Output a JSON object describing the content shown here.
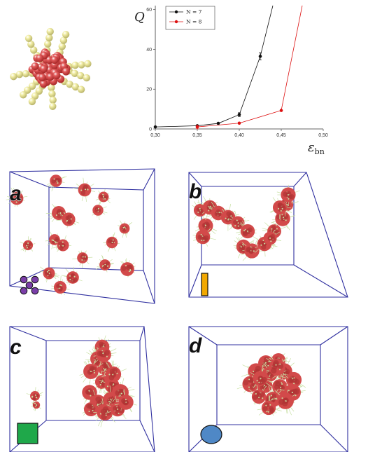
{
  "chart_data": {
    "type": "line",
    "xlabel": "εbn",
    "ylabel": "Q",
    "xlim": [
      0.3,
      0.5
    ],
    "ylim": [
      0,
      62
    ],
    "x_ticks": [
      "0,30",
      "0,35",
      "0,40",
      "0,45",
      "0,50"
    ],
    "y_ticks": [
      "0",
      "20",
      "40",
      "60"
    ],
    "grid": false,
    "legend_position": "top-left",
    "series": [
      {
        "name": "N = 7",
        "color": "#111111",
        "x": [
          0.3,
          0.35,
          0.375,
          0.4,
          0.425,
          0.44
        ],
        "y": [
          1.0,
          1.6,
          2.8,
          7.2,
          36.5,
          62
        ],
        "markers": [
          true,
          true,
          true,
          true,
          true,
          false
        ],
        "error_bars": [
          0,
          0,
          0,
          0.6,
          1.5,
          0
        ]
      },
      {
        "name": "N = 8",
        "color": "#dd1111",
        "x": [
          0.35,
          0.4,
          0.45,
          0.475
        ],
        "y": [
          1.0,
          2.9,
          9.3,
          62
        ],
        "markers": [
          true,
          true,
          true,
          false
        ],
        "error_bars": [
          0.6,
          0,
          0,
          0
        ]
      }
    ]
  },
  "panels": {
    "letters": [
      "a",
      "b",
      "c",
      "d"
    ],
    "colors": {
      "box": "#3030a0",
      "micelle": "#d24a4a",
      "micelle_dark": "#b03434",
      "corona": "#c9e0a5",
      "bead_core": "#e25b5b",
      "bead_arm": "#f2eea6"
    },
    "shape_icons": [
      {
        "name": "four-dot-icon",
        "color": "#7a3ea8"
      },
      {
        "name": "rod-icon",
        "color": "#f2a800"
      },
      {
        "name": "square-icon",
        "color": "#1fa84a"
      },
      {
        "name": "circle-icon",
        "color": "#4f88c6"
      }
    ]
  }
}
